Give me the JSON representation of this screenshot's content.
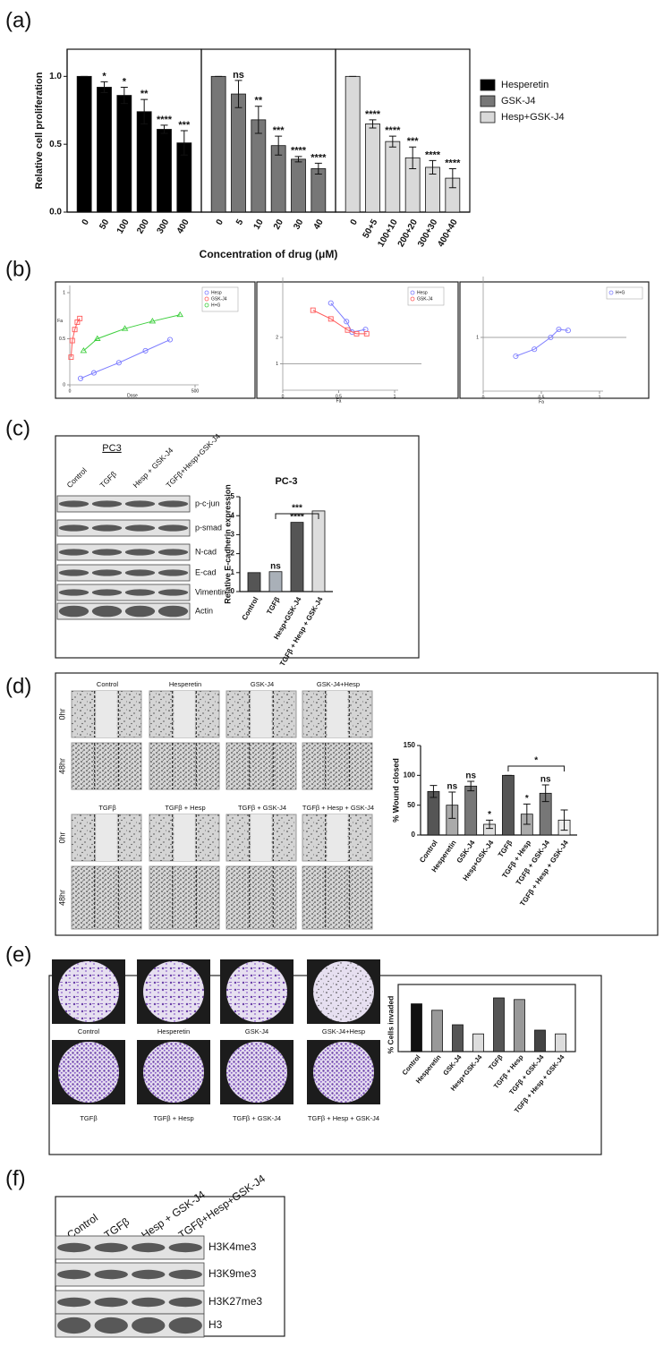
{
  "chart_data": [
    {
      "type": "bar",
      "panel": "(a)",
      "ylabel": "Relative cell proliferation",
      "xlabel": "Concentration of drug (μM)",
      "ylim": [
        0,
        1.2
      ],
      "yticks": [
        {
          "value": 0,
          "label": "0.0"
        },
        {
          "value": 0.5,
          "label": "0.5"
        },
        {
          "value": 1,
          "label": "1.0"
        }
      ],
      "legend_position": "right",
      "series": [
        {
          "name": "Hesperetin",
          "color": "#000000",
          "categories": [
            "0",
            "50",
            "100",
            "200",
            "300",
            "400"
          ],
          "values": [
            1.0,
            0.92,
            0.86,
            0.74,
            0.61,
            0.51
          ],
          "errors": [
            0,
            0.04,
            0.06,
            0.09,
            0.03,
            0.09
          ],
          "annotations": [
            null,
            "*",
            "*",
            "**",
            "****",
            "***"
          ]
        },
        {
          "name": "GSK-J4",
          "color": "#777777",
          "categories": [
            "0",
            "5",
            "10",
            "20",
            "30",
            "40"
          ],
          "values": [
            1.0,
            0.87,
            0.68,
            0.49,
            0.39,
            0.32
          ],
          "errors": [
            0,
            0.1,
            0.1,
            0.07,
            0.02,
            0.04
          ],
          "annotations": [
            null,
            "ns",
            "**",
            "***",
            "****",
            "****"
          ]
        },
        {
          "name": "Hesp+GSK-J4",
          "color": "#d9d9d9",
          "categories": [
            "0",
            "50+5",
            "100+10",
            "200+20",
            "300+30",
            "400+40"
          ],
          "values": [
            1.0,
            0.65,
            0.52,
            0.4,
            0.33,
            0.25
          ],
          "errors": [
            0,
            0.03,
            0.04,
            0.08,
            0.05,
            0.07
          ],
          "annotations": [
            null,
            "****",
            "****",
            "***",
            "****",
            "****"
          ]
        }
      ]
    },
    {
      "type": "scatter",
      "panel": "(b)",
      "xlabel": "Dose",
      "ylabel": "Fa",
      "xlim": [
        0,
        500
      ],
      "ylim": [
        0,
        1
      ],
      "xticks": [
        0,
        500
      ],
      "yticks": [
        0,
        0.5,
        1
      ],
      "series": [
        {
          "name": "Hesp",
          "color": "#7b7bff",
          "marker": "circle",
          "x": [
            43,
            96,
            196,
            302,
            400
          ],
          "values": [
            0.07,
            0.13,
            0.24,
            0.37,
            0.49
          ]
        },
        {
          "name": "GSK-J4",
          "color": "#ff5a5a",
          "marker": "square",
          "x": [
            5,
            10,
            20,
            30,
            40
          ],
          "values": [
            0.3,
            0.48,
            0.6,
            0.68,
            0.72
          ]
        },
        {
          "name": "H+G",
          "color": "#3fcf3f",
          "marker": "triangle",
          "x": [
            55,
            110,
            220,
            330,
            440
          ],
          "values": [
            0.37,
            0.5,
            0.61,
            0.69,
            0.76
          ]
        }
      ]
    },
    {
      "type": "scatter",
      "xlabel": "Fa",
      "xlim": [
        0,
        1
      ],
      "ylim": [
        0,
        4
      ],
      "xticks": [
        0,
        0.5,
        1
      ],
      "yticks": [
        1,
        2
      ],
      "hline": 1,
      "series": [
        {
          "name": "Hesp",
          "color": "#7b7bff",
          "marker": "circle",
          "x": [
            0.43,
            0.57,
            0.62,
            0.74
          ],
          "values": [
            3.3,
            2.6,
            2.2,
            2.3
          ]
        },
        {
          "name": "GSK-J4",
          "color": "#ff5a5a",
          "marker": "square",
          "x": [
            0.27,
            0.43,
            0.58,
            0.66,
            0.75
          ],
          "values": [
            3.03,
            2.7,
            2.28,
            2.14,
            2.14
          ]
        }
      ]
    },
    {
      "type": "scatter",
      "xlabel": "Fa",
      "xlim": [
        0,
        1
      ],
      "ylim": [
        0,
        2
      ],
      "xticks": [
        0,
        0.5,
        1
      ],
      "yticks": [
        1
      ],
      "hline": 1,
      "series": [
        {
          "name": "H+G",
          "color": "#8080ff",
          "marker": "circle",
          "x": [
            0.28,
            0.44,
            0.58,
            0.65,
            0.73
          ],
          "values": [
            0.65,
            0.78,
            1.0,
            1.15,
            1.13
          ]
        }
      ]
    },
    {
      "type": "bar",
      "panel": "(c)",
      "title": "PC-3",
      "ylabel": "Relative E-cadherin expression",
      "ylim": [
        0,
        5
      ],
      "yticks": [
        0,
        1,
        2,
        3,
        4,
        5
      ],
      "categories": [
        "Control",
        "TGFβ",
        "Hesp+GSK-J4",
        "TGFβ + Hesp + GSK-J4"
      ],
      "values": [
        1,
        1.05,
        3.65,
        4.25
      ],
      "colors": [
        "#555555",
        "#a9b0b8",
        "#555555",
        "#dddddd"
      ],
      "annotations": [
        null,
        "ns",
        "****",
        null
      ],
      "bracket": {
        "label": "***",
        "from": "TGFβ",
        "to": "TGFβ + Hesp + GSK-J4"
      }
    },
    {
      "type": "bar",
      "panel": "(d)",
      "ylabel": "% Wound closed",
      "ylim": [
        0,
        150
      ],
      "yticks": [
        0,
        50,
        100,
        150
      ],
      "categories": [
        "Control",
        "Hesperetin",
        "GSK-J4",
        "Hesp+GSK-J4",
        "TGFβ",
        "TGFβ + Hesp",
        "TGFβ + GSK-J4",
        "TGFβ + Hesp + GSK-J4"
      ],
      "values": [
        73,
        50,
        82,
        18,
        100,
        35,
        70,
        25
      ],
      "errors": [
        10,
        22,
        8,
        7,
        0,
        17,
        14,
        17
      ],
      "colors": [
        "#555555",
        "#aaaaaa",
        "#777777",
        "#dddddd",
        "#555555",
        "#aaaaaa",
        "#777777",
        "#eeeeee"
      ],
      "annotations": [
        null,
        "ns",
        "ns",
        "*",
        null,
        "*",
        "ns",
        null
      ],
      "bracket": {
        "label": "*",
        "from": "TGFβ",
        "to": "TGFβ + Hesp + GSK-J4"
      }
    },
    {
      "type": "bar",
      "panel": "(e)",
      "ylabel": "% Cells invaded",
      "ylim": [
        0,
        100
      ],
      "categories": [
        "Control",
        "Hesperetin",
        "GSK-J4",
        "Hesp+GSK-J4",
        "TGFβ",
        "TGFβ + Hesp",
        "TGFβ + GSK-J4",
        "TGFβ + Hesp + GSK-J4"
      ],
      "values": [
        89,
        77,
        50,
        33,
        100,
        97,
        40,
        33
      ],
      "colors": [
        "#111111",
        "#999999",
        "#555555",
        "#dddddd",
        "#555555",
        "#999999",
        "#444444",
        "#dddddd"
      ]
    }
  ],
  "panel_c_blot": {
    "title": "PC3",
    "lanes": [
      "Control",
      "TGFβ",
      "Hesp + GSK-J4",
      "TGFβ+Hesp+GSK-J4"
    ],
    "bands": [
      "p-c-jun",
      "p-smad",
      "N-cad",
      "E-cad",
      "Vimentin",
      "Actin"
    ]
  },
  "panel_d_images": {
    "top_labels": [
      "Control",
      "Hesperetin",
      "GSK-J4",
      "GSK-J4+Hesp"
    ],
    "bottom_labels": [
      "TGFβ",
      "TGFβ + Hesp",
      "TGFβ + GSK-J4",
      "TGFβ + Hesp + GSK-J4"
    ],
    "rows": [
      "0hr",
      "48hr"
    ]
  },
  "panel_e_images": {
    "top_labels": [
      "Control",
      "Hesperetin",
      "GSK-J4",
      "GSK-J4+Hesp"
    ],
    "bottom_labels": [
      "TGFβ",
      "TGFβ + Hesp",
      "TGFβ + GSK-J4",
      "TGFβ + Hesp + GSK-J4"
    ]
  },
  "panel_f_blot": {
    "panel": "(f)",
    "lanes": [
      "Control",
      "TGFβ",
      "Hesp + GSK-J4",
      "TGFβ+Hesp+GSK-J4"
    ],
    "bands": [
      "H3K4me3",
      "H3K9me3",
      "H3K27me3",
      "H3"
    ]
  }
}
